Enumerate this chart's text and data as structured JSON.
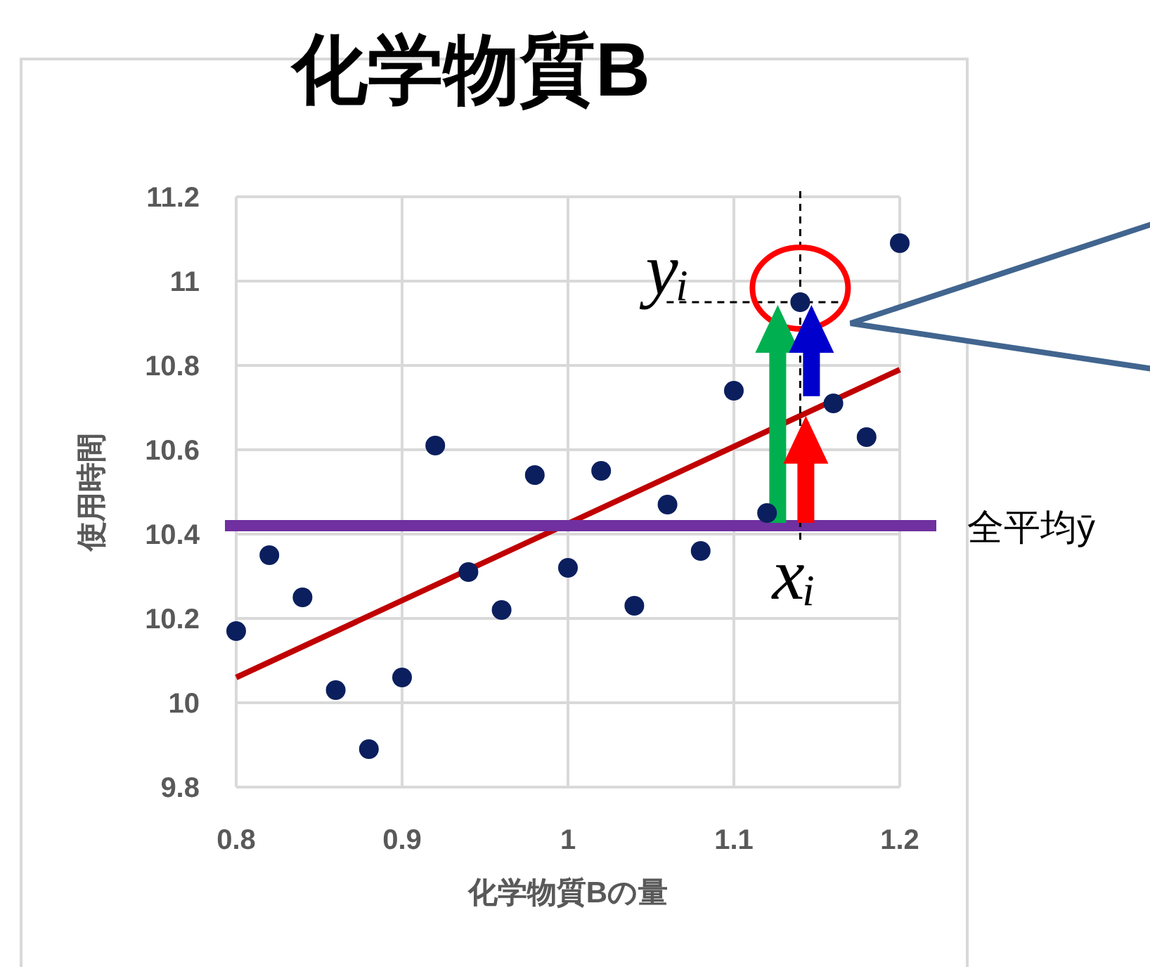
{
  "chart_data": {
    "type": "scatter",
    "title": "化学物質B",
    "xlabel": "化学物質Bの量",
    "ylabel": "使用時間",
    "xlim": [
      0.8,
      1.2
    ],
    "xticks": [
      0.8,
      0.9,
      1,
      1.1,
      1.2
    ],
    "ylim": [
      9.8,
      11.2
    ],
    "yticks": [
      9.8,
      10,
      10.2,
      10.4,
      10.6,
      10.8,
      11,
      11.2
    ],
    "grid": true,
    "marker": "circle",
    "series": [
      {
        "color": "#0b1f5e",
        "x": [
          0.8,
          0.82,
          0.84,
          0.86,
          0.88,
          0.9,
          0.92,
          0.94,
          0.96,
          0.98,
          1.0,
          1.02,
          1.04,
          1.06,
          1.08,
          1.1,
          1.12,
          1.14,
          1.16,
          1.18,
          1.2
        ],
        "values": [
          10.17,
          10.35,
          10.25,
          10.03,
          9.89,
          10.06,
          10.61,
          10.31,
          10.22,
          10.54,
          10.32,
          10.55,
          10.23,
          10.47,
          10.36,
          10.74,
          10.45,
          10.95,
          10.71,
          10.63,
          11.09
        ]
      },
      {
        "type": "line",
        "marker": "none",
        "color": "#c00000",
        "x": [
          0.8,
          1.2
        ],
        "values": [
          10.06,
          10.79
        ]
      }
    ],
    "ref_lines": [
      {
        "axis": "y",
        "value": 10.42,
        "label": "全平均ȳ",
        "color": "#7030a0"
      }
    ],
    "annotations": [
      {
        "text": "yᵢ",
        "x": 1.14,
        "y": 10.95
      },
      {
        "text": "xᵢ",
        "x": 1.14,
        "y": 10.42
      }
    ]
  }
}
